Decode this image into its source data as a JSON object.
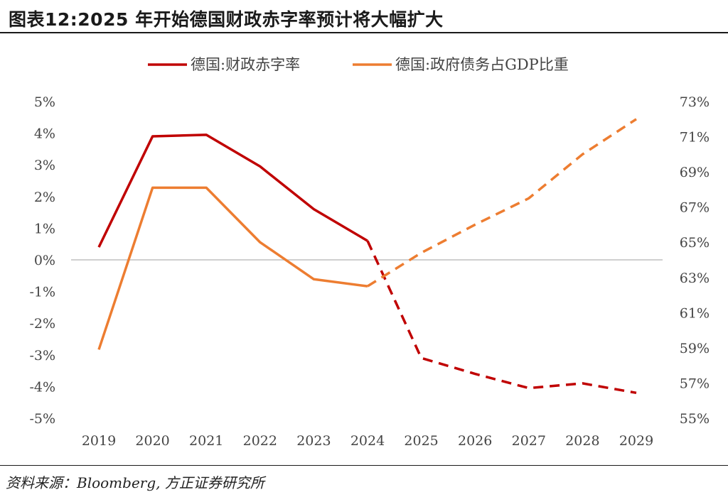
{
  "header": {
    "title": "图表12:2025 年开始德国财政赤字率预计将大幅扩大"
  },
  "footer": {
    "source": "资料来源：Bloomberg, 方正证券研究所"
  },
  "colors": {
    "deficit": "#c00000",
    "debt": "#ed7d31",
    "axis": "#bfbfbf"
  },
  "chart_data": {
    "type": "line",
    "x": [
      "2019",
      "2020",
      "2021",
      "2022",
      "2023",
      "2024",
      "2025",
      "2026",
      "2027",
      "2028",
      "2029"
    ],
    "series": [
      {
        "name": "德国:财政赤字率",
        "axis": "left",
        "color": "#c00000",
        "values": [
          0.4,
          3.9,
          3.95,
          2.95,
          1.6,
          0.6,
          -3.1,
          -3.6,
          -4.05,
          -3.9,
          -4.2
        ],
        "forecast_from": "2024"
      },
      {
        "name": "德国:政府债务占GDP比重",
        "axis": "right",
        "color": "#ed7d31",
        "values": [
          58.9,
          68.1,
          68.1,
          65.0,
          62.9,
          62.5,
          64.4,
          66.0,
          67.5,
          70.0,
          72.0
        ],
        "forecast_from": "2024"
      }
    ],
    "y_left": {
      "ylim": [
        -5,
        5
      ],
      "ticks": [
        "5%",
        "4%",
        "3%",
        "2%",
        "1%",
        "0%",
        "-1%",
        "-2%",
        "-3%",
        "-4%",
        "-5%"
      ]
    },
    "y_right": {
      "ylim": [
        55,
        73
      ],
      "ticks": [
        "73%",
        "71%",
        "69%",
        "67%",
        "65%",
        "63%",
        "61%",
        "59%",
        "57%",
        "55%"
      ]
    },
    "legend": "top-center",
    "grid": false
  }
}
